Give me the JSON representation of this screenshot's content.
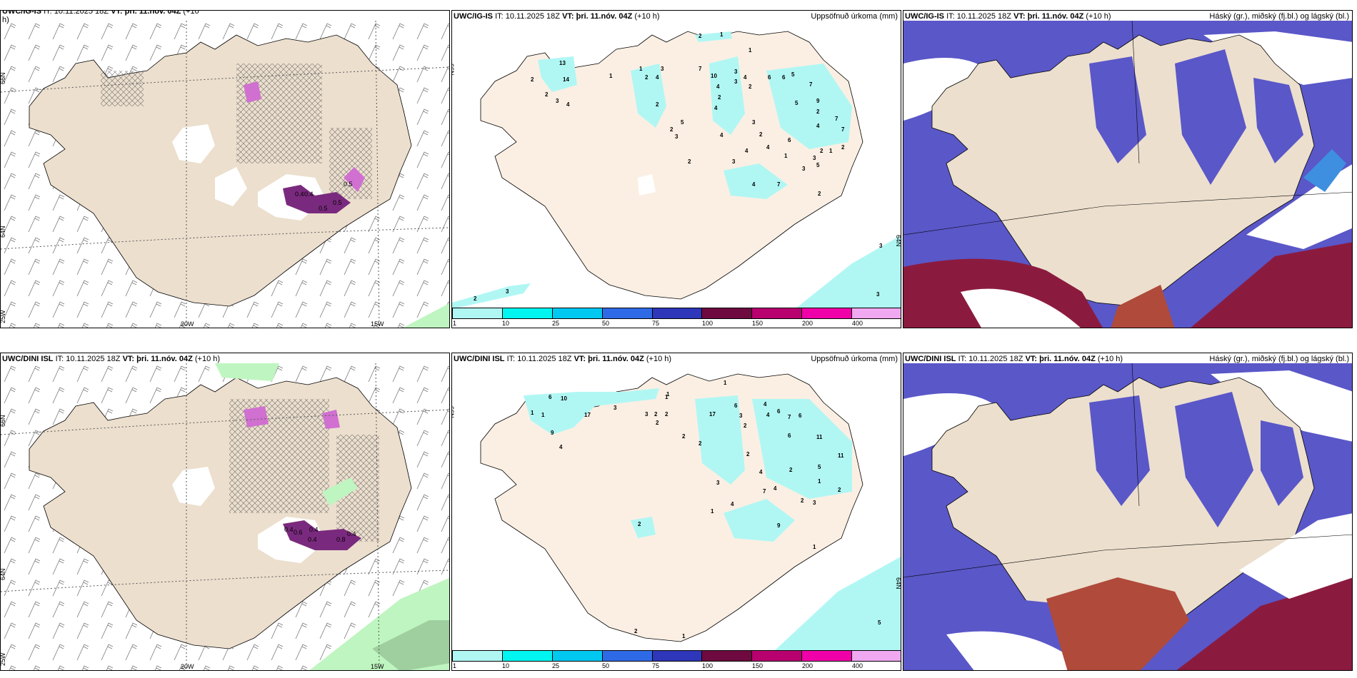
{
  "rows": [
    {
      "model": "UWC/IG-IS",
      "wind_title": {
        "model": "UWC/IG-IS",
        "it_label": "IT:",
        "it": "10.11.2025 18Z",
        "vt_label": "VT:",
        "vt": "þri. 11.nóv. 04Z",
        "lead": "(+10",
        "lead2": "h)"
      },
      "precip_title": {
        "model": "UWC/IG-IS",
        "it_label": "IT:",
        "it": "10.11.2025 18Z",
        "vt_label": "VT:",
        "vt": "þri. 11.nóv. 04Z",
        "lead": "(+10 h)",
        "right": "Uppsöfnuð úrkoma (mm)"
      },
      "cloud_title": {
        "model": "UWC/IG-IS",
        "it_label": "IT:",
        "it": "10.11.2025 18Z",
        "vt_label": "VT:",
        "vt": "þri. 11.nóv. 04Z",
        "lead": "(+10 h)",
        "right": "Háský (gr.), miðský (fj.bl.) og lágský (bl.)"
      }
    },
    {
      "model": "UWC/DINI ISL",
      "wind_title": {
        "model": "UWC/DINI ISL",
        "it_label": "IT:",
        "it": "10.11.2025 18Z",
        "vt_label": "VT:",
        "vt": "þri. 11.nóv. 04Z",
        "lead": "(+10 h)",
        "lead2": ""
      },
      "precip_title": {
        "model": "UWC/DINI ISL",
        "it_label": "IT:",
        "it": "10.11.2025 18Z",
        "vt_label": "VT:",
        "vt": "þri. 11.nóv. 04Z",
        "lead": "(+10 h)",
        "right": "Uppsöfnuð úrkoma (mm)"
      },
      "cloud_title": {
        "model": "UWC/DINI ISL",
        "it_label": "IT:",
        "it": "10.11.2025 18Z",
        "vt_label": "VT:",
        "vt": "þri. 11.nóv. 04Z",
        "lead": "(+10 h)",
        "right": "Háský (gr.), miðský (fj.bl.) og lágský (bl.)"
      }
    }
  ],
  "axes": {
    "lat66": "66N",
    "lat64": "64N",
    "lon20": "20W",
    "lon15": "15W",
    "lon25": "25W"
  },
  "precip_legend": {
    "ticks": [
      "1",
      "10",
      "25",
      "50",
      "75",
      "100",
      "150",
      "200",
      "400"
    ],
    "colors": [
      "#b0f7f4",
      "#00f5f0",
      "#00c8f0",
      "#2f6ae6",
      "#2e37b9",
      "#6e0a3f",
      "#b8006f",
      "#f000a8",
      "#f0a8f0"
    ]
  },
  "wind_labels_row1": [
    "0.4",
    "0.4",
    "0.5",
    "0.5",
    "0.5"
  ],
  "wind_labels_row2": [
    "0.4",
    "0.6",
    "0.4",
    "0.4",
    "0.8",
    "0.4"
  ],
  "precip_numbers_row1": [
    "2",
    "1",
    "1",
    "13",
    "2",
    "14",
    "2",
    "3",
    "4",
    "1",
    "1",
    "2",
    "4",
    "3",
    "7",
    "10",
    "4",
    "3",
    "4",
    "3",
    "2",
    "6",
    "6",
    "5",
    "7",
    "2",
    "4",
    "5",
    "3",
    "2",
    "2",
    "9",
    "7",
    "4",
    "2",
    "5",
    "4",
    "7",
    "3",
    "2",
    "6",
    "4",
    "1",
    "3",
    "2",
    "1",
    "2",
    "4",
    "2",
    "3",
    "7",
    "5",
    "4",
    "3",
    "2",
    "2",
    "3",
    "3",
    "3"
  ],
  "precip_numbers_row2": [
    "1",
    "1",
    "6",
    "10",
    "17",
    "3",
    "1",
    "1",
    "9",
    "4",
    "1",
    "17",
    "6",
    "3",
    "2",
    "3",
    "2",
    "2",
    "2",
    "2",
    "4",
    "4",
    "2",
    "6",
    "7",
    "6",
    "6",
    "11",
    "2",
    "11",
    "5",
    "3",
    "4",
    "2",
    "7",
    "4",
    "1",
    "9",
    "4",
    "2",
    "3",
    "1",
    "2",
    "2",
    "2",
    "1",
    "5",
    "1"
  ],
  "colors": {
    "land": "#ecdfce",
    "land_precip": "#fbefe3",
    "precip_light": "#b0f7f4",
    "wind_green": "#bff5c0",
    "cloud_blue": "#5a57c8",
    "cloud_mid": "#3e8fe0",
    "cloud_red": "#8b1b3e",
    "cloud_brown": "#b04a3b"
  }
}
